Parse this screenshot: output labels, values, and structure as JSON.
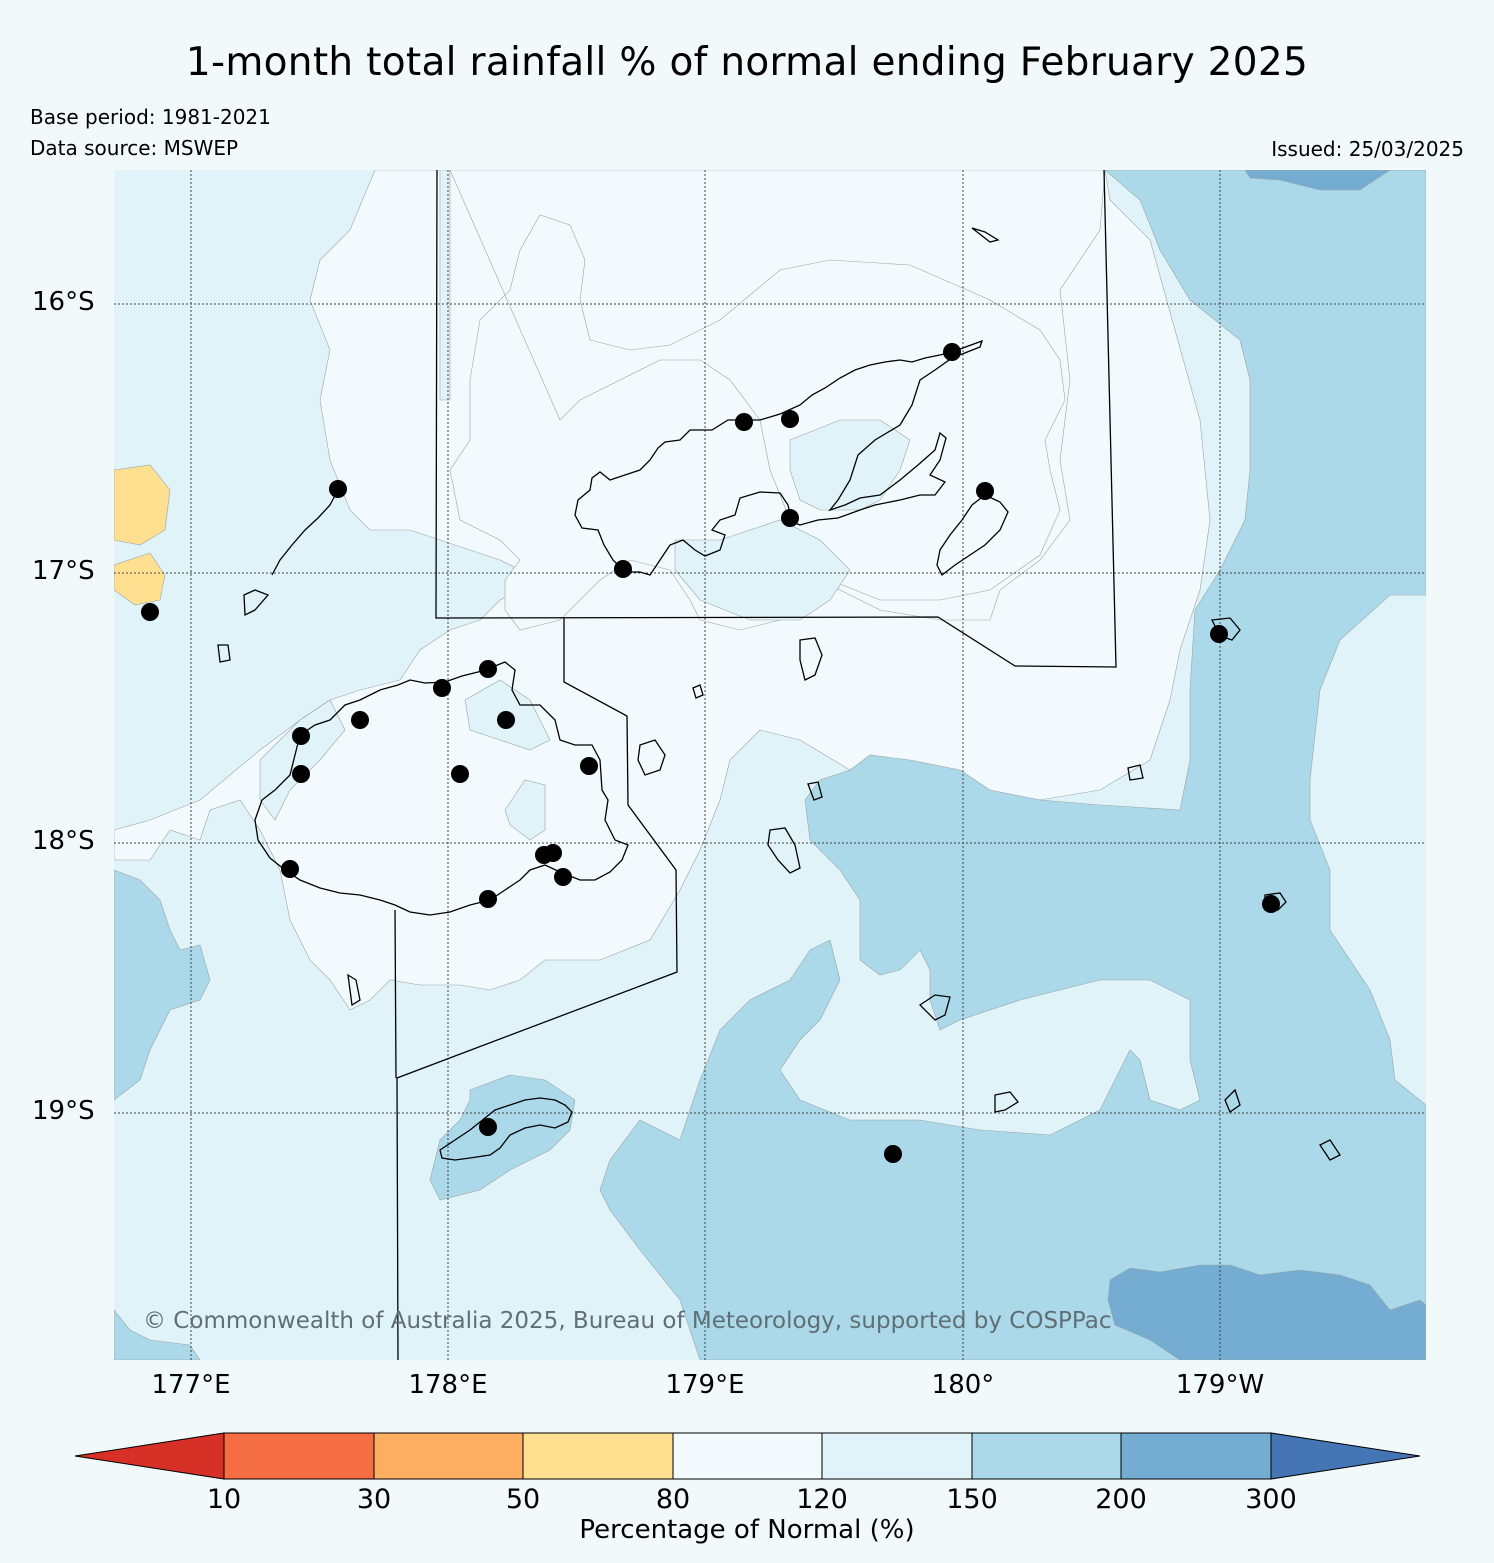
{
  "title": "1-month total rainfall % of normal ending February 2025",
  "base_period": "Base period: 1981-2021",
  "data_source": "Data source: MSWEP",
  "issued": "Issued: 25/03/2025",
  "copyright": "© Commonwealth of Australia 2025, Bureau of Meteorology, supported by COSPPac",
  "lat_ticks": [
    "16°S",
    "17°S",
    "18°S",
    "19°S"
  ],
  "lon_ticks": [
    "177°E",
    "178°E",
    "179°E",
    "180°",
    "179°W"
  ],
  "colorbar": {
    "ticks": [
      "10",
      "30",
      "50",
      "80",
      "120",
      "150",
      "200",
      "300"
    ],
    "label": "Percentage of Normal (%)",
    "colors": [
      "#d73027",
      "#f46d43",
      "#fdae61",
      "#fee090",
      "#f3fafd",
      "#e0f3f8",
      "#abd9e9",
      "#74add1",
      "#4575b4"
    ]
  },
  "palette": {
    "background": "#f2f9fb",
    "below_80": "#fee090",
    "range_80_120": "#f3fafd",
    "range_120_150": "#e0f3f8",
    "range_150_200": "#abd9e9",
    "range_200_300": "#74add1"
  }
}
